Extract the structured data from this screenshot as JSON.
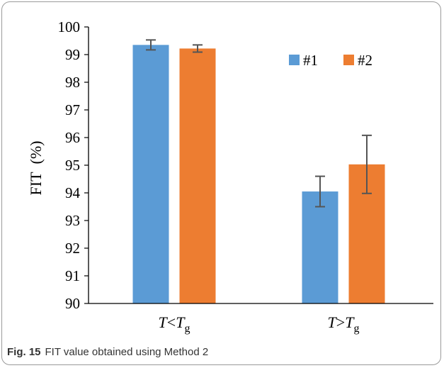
{
  "chart_data": {
    "type": "bar",
    "categories": [
      {
        "main": "T",
        "op": "<",
        "sub_base": "T",
        "sub": "g"
      },
      {
        "main": "T",
        "op": ">",
        "sub_base": "T",
        "sub": "g"
      }
    ],
    "series": [
      {
        "name": "#1",
        "color": "#5b9bd5",
        "values": [
          99.35,
          94.05
        ],
        "errors": [
          0.18,
          0.55
        ]
      },
      {
        "name": "#2",
        "color": "#ed7d31",
        "values": [
          99.22,
          95.03
        ],
        "errors": [
          0.13,
          1.05
        ]
      }
    ],
    "ylabel": "FIT  (%)",
    "ylim": [
      90,
      100
    ],
    "yticks": [
      90,
      91,
      92,
      93,
      94,
      95,
      96,
      97,
      98,
      99,
      100
    ],
    "grid": false,
    "legend_position": "top-right",
    "error_bar_color": "#555555"
  },
  "caption": {
    "label": "Fig. 15",
    "text": "FIT value obtained using Method 2"
  }
}
